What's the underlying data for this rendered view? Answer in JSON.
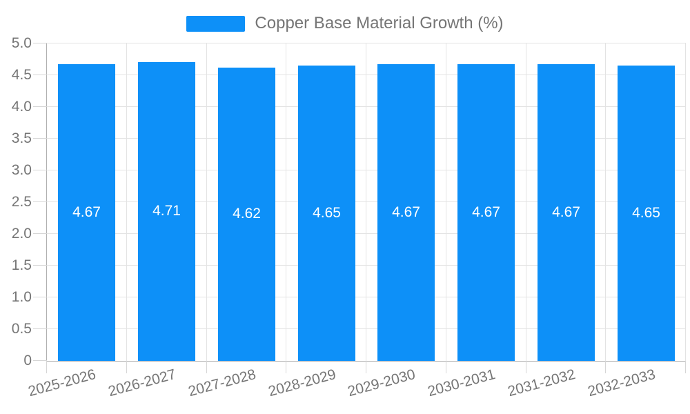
{
  "legend": {
    "label": "Copper Base Material Growth (%)"
  },
  "colors": {
    "bar": "#0d90f8",
    "bar_label_text": "#ffffff",
    "grid": "#e3e3e3",
    "axis": "#b0b0b0",
    "tick": "#d6d6d6",
    "text": "#757575"
  },
  "chart_data": {
    "type": "bar",
    "title": "",
    "xlabel": "",
    "ylabel": "",
    "categories": [
      "2025-2026",
      "2026-2027",
      "2027-2028",
      "2028-2029",
      "2029-2030",
      "2030-2031",
      "2031-2032",
      "2032-2033"
    ],
    "series": [
      {
        "name": "Copper Base Material Growth (%)",
        "values": [
          4.67,
          4.71,
          4.62,
          4.65,
          4.67,
          4.67,
          4.67,
          4.65
        ]
      }
    ],
    "bar_value_labels": [
      "4.67",
      "4.71",
      "4.62",
      "4.65",
      "4.67",
      "4.67",
      "4.67",
      "4.65"
    ],
    "ylim": [
      0,
      5
    ],
    "ytick_step": 0.5,
    "ytick_labels": [
      "0",
      "0.5",
      "1.0",
      "1.5",
      "2.0",
      "2.5",
      "3.0",
      "3.5",
      "4.0",
      "4.5",
      "5.0"
    ],
    "grid": true,
    "legend_position": "top-center",
    "bar_label_position": "inside-middle",
    "xlabel_rotation_deg": -15
  }
}
